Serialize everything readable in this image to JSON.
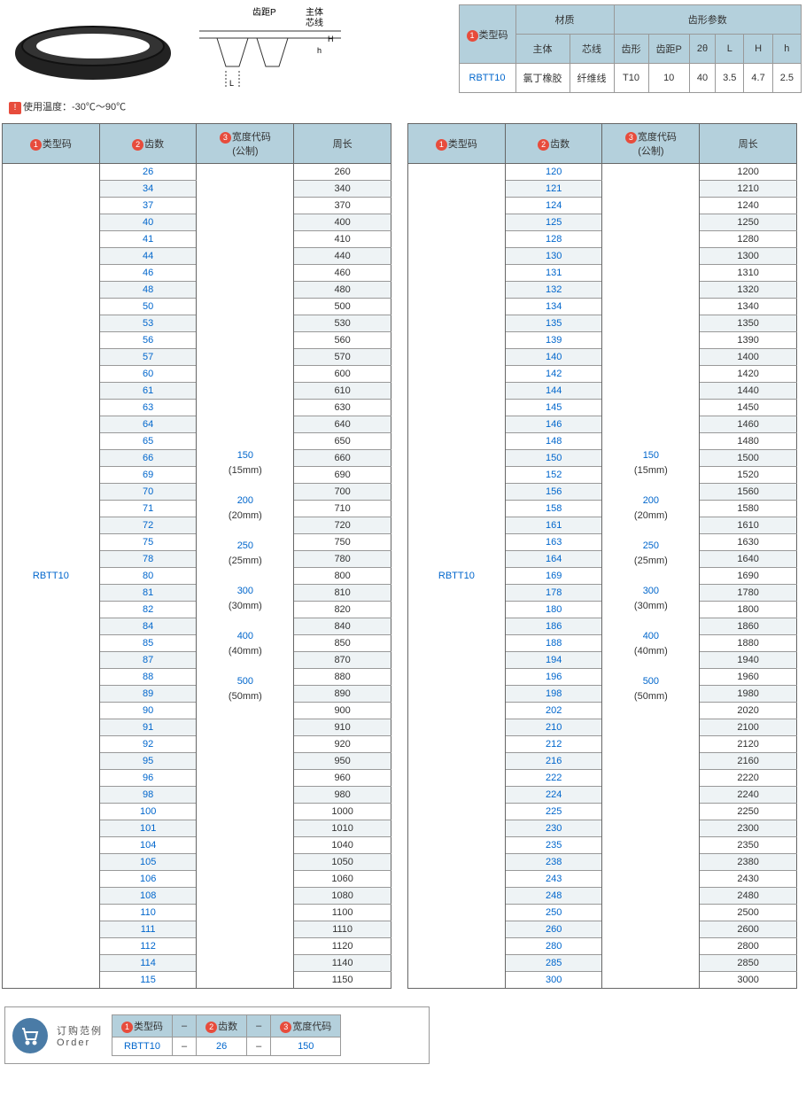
{
  "tempNote": {
    "badge": "!",
    "text": "使用温度：-30℃～90℃"
  },
  "diagram": {
    "labels": {
      "pitch": "齿距P",
      "body": "主体",
      "core": "芯线",
      "H": "H",
      "h": "h",
      "L": "L"
    }
  },
  "specTable": {
    "header1": {
      "type": "类型码",
      "material": "材质",
      "toothParams": "齿形参数"
    },
    "header2": {
      "body": "主体",
      "core": "芯线",
      "tooth": "齿形",
      "pitch": "齿距P",
      "angle": "2θ",
      "L": "L",
      "H": "H",
      "h": "h"
    },
    "row": {
      "type": "RBTT10",
      "body": "氯丁橡胶",
      "core": "纤维线",
      "tooth": "T10",
      "pitch": "10",
      "angle": "40",
      "L": "3.5",
      "H": "4.7",
      "h": "2.5"
    }
  },
  "mainHeaders": {
    "type": "类型码",
    "teeth": "齿数",
    "width": "宽度代码\n(公制)",
    "perimeter": "周长"
  },
  "widthCodes": [
    {
      "code": "150",
      "mm": "(15mm)"
    },
    {
      "code": "200",
      "mm": "(20mm)"
    },
    {
      "code": "250",
      "mm": "(25mm)"
    },
    {
      "code": "300",
      "mm": "(30mm)"
    },
    {
      "code": "400",
      "mm": "(40mm)"
    },
    {
      "code": "500",
      "mm": "(50mm)"
    }
  ],
  "typeCode": "RBTT10",
  "leftData": [
    {
      "t": "26",
      "p": "260"
    },
    {
      "t": "34",
      "p": "340"
    },
    {
      "t": "37",
      "p": "370"
    },
    {
      "t": "40",
      "p": "400"
    },
    {
      "t": "41",
      "p": "410"
    },
    {
      "t": "44",
      "p": "440"
    },
    {
      "t": "46",
      "p": "460"
    },
    {
      "t": "48",
      "p": "480"
    },
    {
      "t": "50",
      "p": "500"
    },
    {
      "t": "53",
      "p": "530"
    },
    {
      "t": "56",
      "p": "560"
    },
    {
      "t": "57",
      "p": "570"
    },
    {
      "t": "60",
      "p": "600"
    },
    {
      "t": "61",
      "p": "610"
    },
    {
      "t": "63",
      "p": "630"
    },
    {
      "t": "64",
      "p": "640"
    },
    {
      "t": "65",
      "p": "650"
    },
    {
      "t": "66",
      "p": "660"
    },
    {
      "t": "69",
      "p": "690"
    },
    {
      "t": "70",
      "p": "700"
    },
    {
      "t": "71",
      "p": "710"
    },
    {
      "t": "72",
      "p": "720"
    },
    {
      "t": "75",
      "p": "750"
    },
    {
      "t": "78",
      "p": "780"
    },
    {
      "t": "80",
      "p": "800"
    },
    {
      "t": "81",
      "p": "810"
    },
    {
      "t": "82",
      "p": "820"
    },
    {
      "t": "84",
      "p": "840"
    },
    {
      "t": "85",
      "p": "850"
    },
    {
      "t": "87",
      "p": "870"
    },
    {
      "t": "88",
      "p": "880"
    },
    {
      "t": "89",
      "p": "890"
    },
    {
      "t": "90",
      "p": "900"
    },
    {
      "t": "91",
      "p": "910"
    },
    {
      "t": "92",
      "p": "920"
    },
    {
      "t": "95",
      "p": "950"
    },
    {
      "t": "96",
      "p": "960"
    },
    {
      "t": "98",
      "p": "980"
    },
    {
      "t": "100",
      "p": "1000"
    },
    {
      "t": "101",
      "p": "1010"
    },
    {
      "t": "104",
      "p": "1040"
    },
    {
      "t": "105",
      "p": "1050"
    },
    {
      "t": "106",
      "p": "1060"
    },
    {
      "t": "108",
      "p": "1080"
    },
    {
      "t": "110",
      "p": "1100"
    },
    {
      "t": "111",
      "p": "1110"
    },
    {
      "t": "112",
      "p": "1120"
    },
    {
      "t": "114",
      "p": "1140"
    },
    {
      "t": "115",
      "p": "1150"
    }
  ],
  "rightData": [
    {
      "t": "120",
      "p": "1200"
    },
    {
      "t": "121",
      "p": "1210"
    },
    {
      "t": "124",
      "p": "1240"
    },
    {
      "t": "125",
      "p": "1250"
    },
    {
      "t": "128",
      "p": "1280"
    },
    {
      "t": "130",
      "p": "1300"
    },
    {
      "t": "131",
      "p": "1310"
    },
    {
      "t": "132",
      "p": "1320"
    },
    {
      "t": "134",
      "p": "1340"
    },
    {
      "t": "135",
      "p": "1350"
    },
    {
      "t": "139",
      "p": "1390"
    },
    {
      "t": "140",
      "p": "1400"
    },
    {
      "t": "142",
      "p": "1420"
    },
    {
      "t": "144",
      "p": "1440"
    },
    {
      "t": "145",
      "p": "1450"
    },
    {
      "t": "146",
      "p": "1460"
    },
    {
      "t": "148",
      "p": "1480"
    },
    {
      "t": "150",
      "p": "1500"
    },
    {
      "t": "152",
      "p": "1520"
    },
    {
      "t": "156",
      "p": "1560"
    },
    {
      "t": "158",
      "p": "1580"
    },
    {
      "t": "161",
      "p": "1610"
    },
    {
      "t": "163",
      "p": "1630"
    },
    {
      "t": "164",
      "p": "1640"
    },
    {
      "t": "169",
      "p": "1690"
    },
    {
      "t": "178",
      "p": "1780"
    },
    {
      "t": "180",
      "p": "1800"
    },
    {
      "t": "186",
      "p": "1860"
    },
    {
      "t": "188",
      "p": "1880"
    },
    {
      "t": "194",
      "p": "1940"
    },
    {
      "t": "196",
      "p": "1960"
    },
    {
      "t": "198",
      "p": "1980"
    },
    {
      "t": "202",
      "p": "2020"
    },
    {
      "t": "210",
      "p": "2100"
    },
    {
      "t": "212",
      "p": "2120"
    },
    {
      "t": "216",
      "p": "2160"
    },
    {
      "t": "222",
      "p": "2220"
    },
    {
      "t": "224",
      "p": "2240"
    },
    {
      "t": "225",
      "p": "2250"
    },
    {
      "t": "230",
      "p": "2300"
    },
    {
      "t": "235",
      "p": "2350"
    },
    {
      "t": "238",
      "p": "2380"
    },
    {
      "t": "243",
      "p": "2430"
    },
    {
      "t": "248",
      "p": "2480"
    },
    {
      "t": "250",
      "p": "2500"
    },
    {
      "t": "260",
      "p": "2600"
    },
    {
      "t": "280",
      "p": "2800"
    },
    {
      "t": "285",
      "p": "2850"
    },
    {
      "t": "300",
      "p": "3000"
    }
  ],
  "order": {
    "title1": "订购范例",
    "title2": "Order",
    "headers": {
      "type": "类型码",
      "teeth": "齿数",
      "width": "宽度代码"
    },
    "row": {
      "type": "RBTT10",
      "teeth": "26",
      "width": "150"
    },
    "dash": "–"
  }
}
